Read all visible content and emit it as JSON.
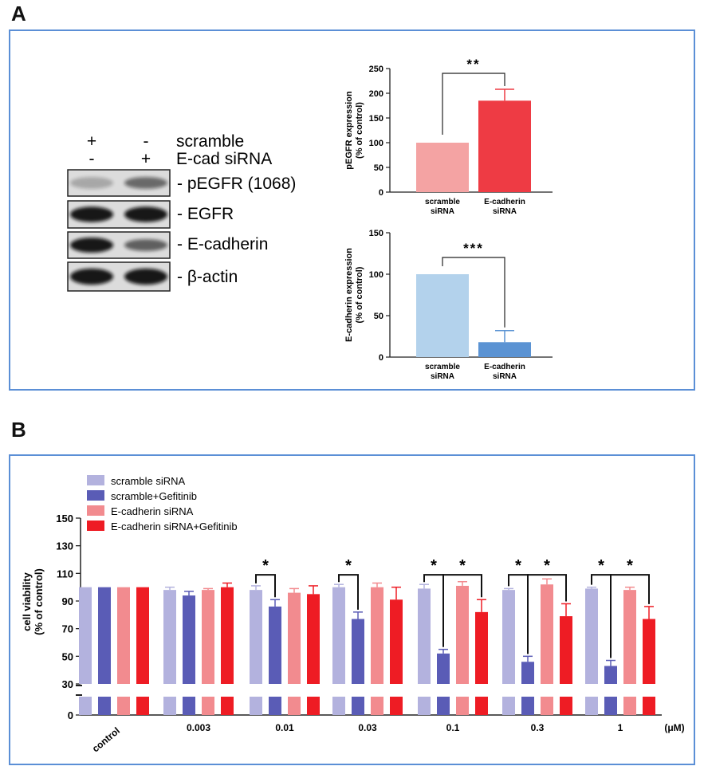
{
  "panels": {
    "a_label": "A",
    "b_label": "B"
  },
  "western_blot": {
    "treatment_rows": [
      {
        "label": "scramble",
        "lane1": "+",
        "lane2": "-"
      },
      {
        "label": "E-cad siRNA",
        "lane1": "-",
        "lane2": "+"
      }
    ],
    "bands": [
      {
        "label": "- pEGFR (1068)",
        "lane1_intensity": 0.25,
        "lane2_intensity": 0.55
      },
      {
        "label": "- EGFR",
        "lane1_intensity": 0.95,
        "lane2_intensity": 0.95
      },
      {
        "label": "- E-cadherin",
        "lane1_intensity": 0.95,
        "lane2_intensity": 0.6
      },
      {
        "label": "- β-actin",
        "lane1_intensity": 0.95,
        "lane2_intensity": 0.95
      }
    ]
  },
  "colors": {
    "frame": "#5b8fd6",
    "pegfr_scramble": "#f4a3a3",
    "pegfr_ecad": "#ee3b44",
    "ecad_scramble": "#b3d2ec",
    "ecad_ecad": "#5b93d3",
    "scramble_sirna": "#b3b2de",
    "scramble_gef": "#5a5cb6",
    "ecad_sirna": "#f28b8f",
    "ecad_gef": "#ee1c24"
  },
  "chart_data": [
    {
      "type": "bar",
      "title": "",
      "categories": [
        "scramble\nsiRNA",
        "E-cadherin\nsiRNA"
      ],
      "cat_lines": [
        [
          "scramble",
          "siRNA"
        ],
        [
          "E-cadherin",
          "siRNA"
        ]
      ],
      "values": [
        100,
        185
      ],
      "errors": [
        0,
        23
      ],
      "ylabel_lines": [
        "pEGFR expression",
        "(% of control)"
      ],
      "ylim": [
        0,
        250
      ],
      "yticks": [
        0,
        50,
        100,
        150,
        200,
        250
      ],
      "significance": "**"
    },
    {
      "type": "bar",
      "title": "",
      "categories": [
        "scramble\nsiRNA",
        "E-cadherin\nsiRNA"
      ],
      "cat_lines": [
        [
          "scramble",
          "siRNA"
        ],
        [
          "E-cadherin",
          "siRNA"
        ]
      ],
      "values": [
        100,
        18
      ],
      "errors": [
        0,
        14
      ],
      "ylabel_lines": [
        "E-cadherin expression",
        "(% of control)"
      ],
      "ylim": [
        0,
        150
      ],
      "yticks": [
        0,
        50,
        100,
        150
      ],
      "significance": "***"
    },
    {
      "type": "bar",
      "title": "",
      "xlabel_unit": "(μM)",
      "ylabel_lines": [
        "cell viability",
        "(% of control)"
      ],
      "categories": [
        "control",
        "0.003",
        "0.01",
        "0.03",
        "0.1",
        "0.3",
        "1"
      ],
      "ylim": [
        0,
        150
      ],
      "axis_break": [
        0,
        30
      ],
      "yticks": [
        0,
        30,
        50,
        70,
        90,
        110,
        130,
        150
      ],
      "series": [
        {
          "name": "scramble siRNA",
          "values": [
            100,
            98,
            98,
            100,
            99,
            98,
            99
          ],
          "errors": [
            0,
            2,
            3,
            2,
            3,
            1,
            1
          ]
        },
        {
          "name": "scramble+Gefitinib",
          "values": [
            100,
            94,
            86,
            77,
            52,
            46,
            43
          ],
          "errors": [
            0,
            3,
            5,
            5,
            3,
            4,
            4
          ]
        },
        {
          "name": "E-cadherin siRNA",
          "values": [
            100,
            98,
            96,
            100,
            101,
            102,
            98
          ],
          "errors": [
            0,
            1,
            3,
            3,
            3,
            4,
            2
          ]
        },
        {
          "name": "E-cadherin siRNA+Gefitinib",
          "values": [
            100,
            100,
            95,
            91,
            82,
            79,
            77
          ],
          "errors": [
            0,
            3,
            6,
            9,
            9,
            9,
            9
          ]
        }
      ],
      "significance": [
        {
          "category": "0.01",
          "pairs": [
            [
              0,
              1
            ]
          ],
          "label": "*"
        },
        {
          "category": "0.03",
          "pairs": [
            [
              0,
              1
            ]
          ],
          "label": "*"
        },
        {
          "category": "0.1",
          "pairs": [
            [
              0,
              1
            ],
            [
              1,
              3
            ]
          ],
          "label": "*"
        },
        {
          "category": "0.3",
          "pairs": [
            [
              0,
              1
            ],
            [
              1,
              3
            ]
          ],
          "label": "*"
        },
        {
          "category": "1",
          "pairs": [
            [
              0,
              1
            ],
            [
              1,
              3
            ]
          ],
          "label": "*"
        }
      ]
    }
  ]
}
